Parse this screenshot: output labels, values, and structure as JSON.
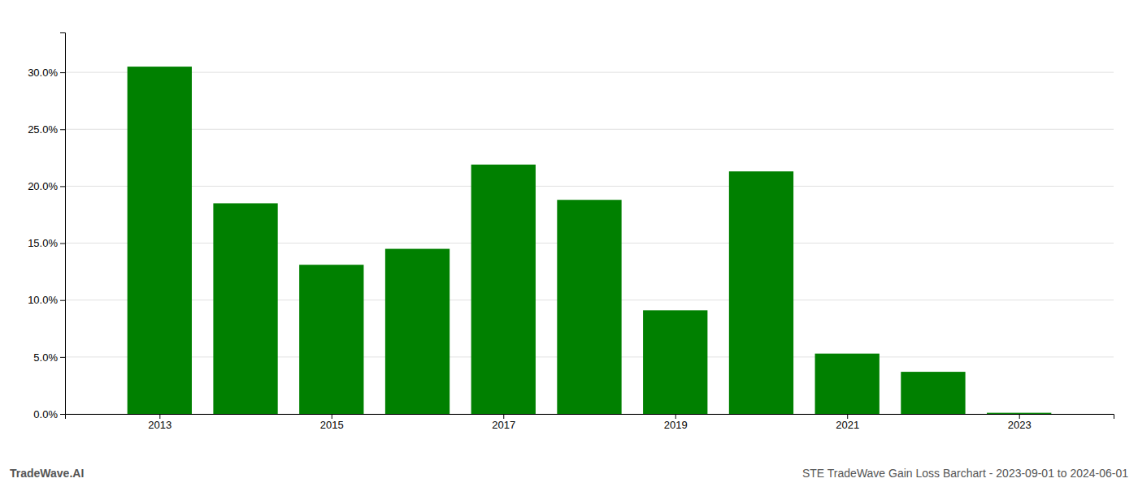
{
  "chart_data": {
    "type": "bar",
    "x": [
      2013,
      2014,
      2015,
      2016,
      2017,
      2018,
      2019,
      2020,
      2021,
      2022,
      2023
    ],
    "values": [
      0.305,
      0.185,
      0.131,
      0.145,
      0.219,
      0.188,
      0.091,
      0.213,
      0.053,
      0.037,
      0.001
    ],
    "color": "#008000",
    "xlim": [
      2011.9,
      2024.1
    ],
    "xticks": [
      2013,
      2015,
      2017,
      2019,
      2021,
      2023
    ],
    "ylim": [
      0,
      0.335
    ],
    "yticks": [
      {
        "value": 0.0,
        "label": "0.0%"
      },
      {
        "value": 0.05,
        "label": "5.0%"
      },
      {
        "value": 0.1,
        "label": "10.0%"
      },
      {
        "value": 0.15,
        "label": "15.0%"
      },
      {
        "value": 0.2,
        "label": "20.0%"
      },
      {
        "value": 0.25,
        "label": "25.0%"
      },
      {
        "value": 0.3,
        "label": "30.0%"
      }
    ],
    "grid": true,
    "annotations": [
      "TradeWave.AI",
      "STE TradeWave Gain Loss Barchart - 2023-09-01 to 2024-06-01"
    ]
  }
}
